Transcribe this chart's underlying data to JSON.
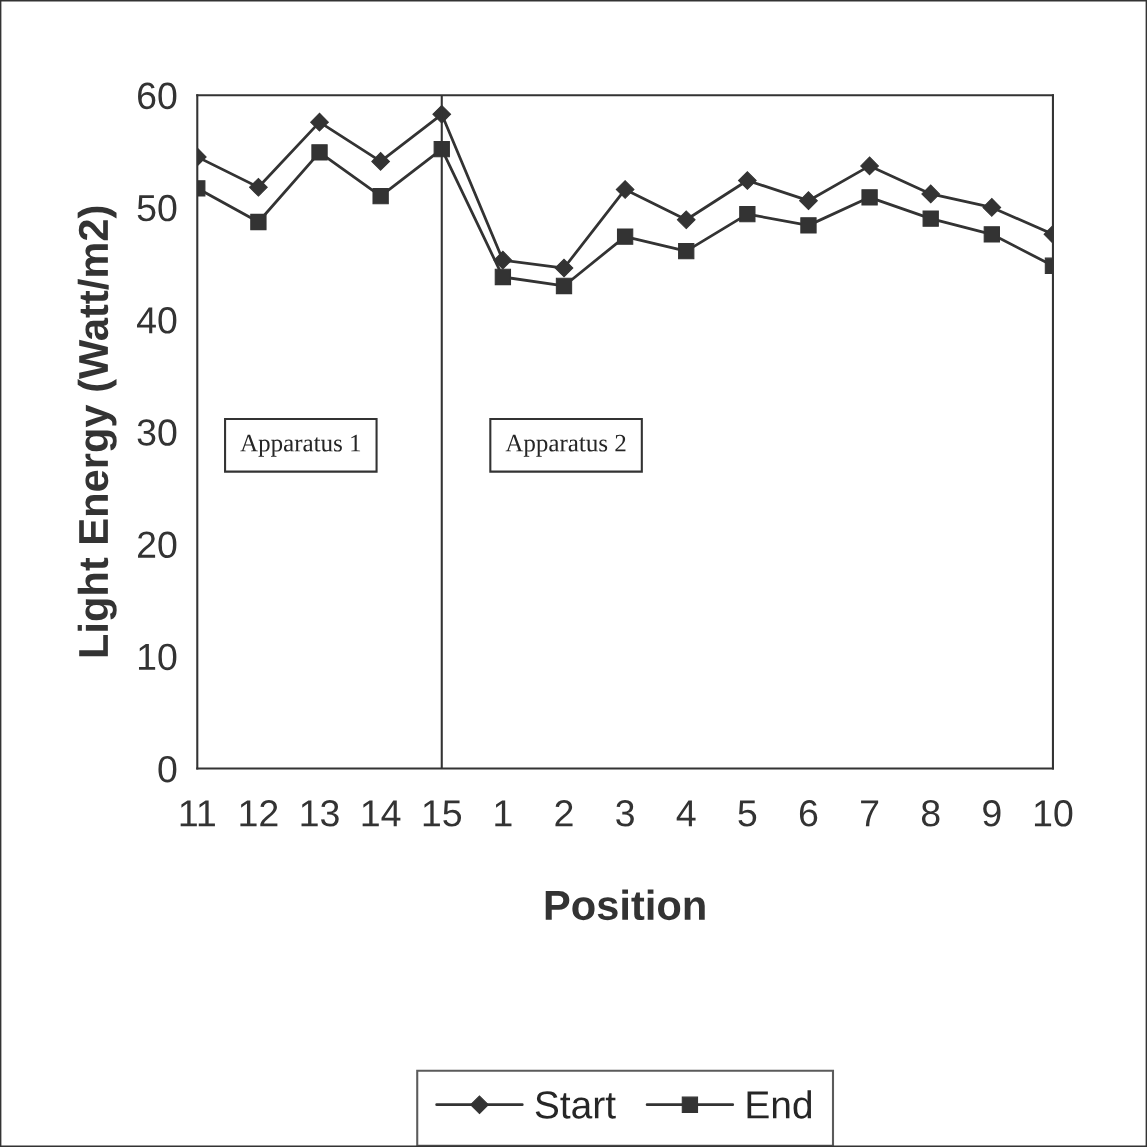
{
  "chart_data": {
    "type": "line",
    "xlabel": "Position",
    "ylabel": "Light Energy (Watt/m2)",
    "categories": [
      "11",
      "12",
      "13",
      "14",
      "15",
      "1",
      "2",
      "3",
      "4",
      "5",
      "6",
      "7",
      "8",
      "9",
      "10"
    ],
    "series": [
      {
        "name": "Start",
        "color": "#333333",
        "marker": "diamond",
        "values": [
          54.5,
          51.8,
          57.6,
          54.1,
          58.3,
          45.3,
          44.6,
          51.6,
          48.9,
          52.4,
          50.6,
          53.7,
          51.2,
          50.0,
          47.6
        ]
      },
      {
        "name": "End",
        "color": "#333333",
        "marker": "square",
        "values": [
          51.7,
          48.7,
          54.9,
          51.0,
          55.2,
          43.8,
          43.0,
          47.4,
          46.1,
          49.4,
          48.4,
          50.9,
          49.0,
          47.6,
          44.8
        ]
      }
    ],
    "ylim": [
      0,
      60
    ],
    "yticks": [
      0,
      10,
      20,
      30,
      40,
      50,
      60
    ],
    "ref_lines": [
      {
        "axis": "x",
        "value": "15",
        "color": "#333333"
      }
    ],
    "annotations": [
      "Apparatus 1",
      "Apparatus 2"
    ],
    "legend": "bottom",
    "grid": false,
    "line_style": "solid"
  }
}
